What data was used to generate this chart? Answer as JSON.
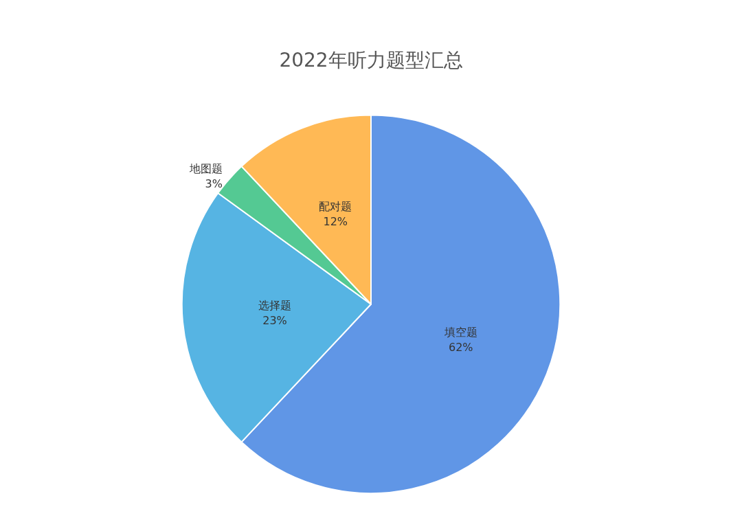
{
  "chart_data": {
    "type": "pie",
    "title": "2022年听力题型汇总",
    "categories": [
      "填空题",
      "选择题",
      "地图题",
      "配对题"
    ],
    "values": [
      62,
      23,
      3,
      12
    ],
    "colors": [
      "#6096e6",
      "#56b4e3",
      "#54c993",
      "#ffb955"
    ],
    "value_labels": [
      "62%",
      "23%",
      "3%",
      "12%"
    ],
    "legend": false
  }
}
